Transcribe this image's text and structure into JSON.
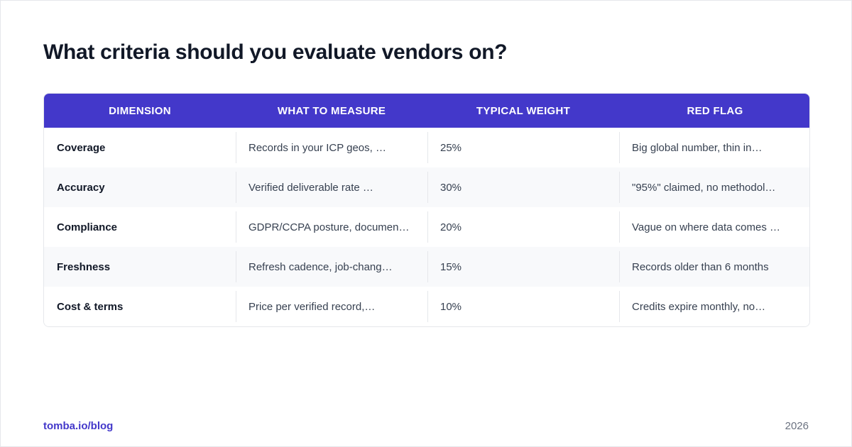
{
  "title": "What criteria should you evaluate vendors on?",
  "table": {
    "headers": [
      "DIMENSION",
      "WHAT TO MEASURE",
      "TYPICAL WEIGHT",
      "RED FLAG"
    ],
    "rows": [
      [
        "Coverage",
        "Records in your ICP geos, …",
        "25%",
        "Big global number, thin in…"
      ],
      [
        "Accuracy",
        "Verified deliverable rate …",
        "30%",
        "\"95%\" claimed, no methodol…"
      ],
      [
        "Compliance",
        "GDPR/CCPA posture, documen…",
        "20%",
        "Vague on where data comes …"
      ],
      [
        "Freshness",
        "Refresh cadence, job-chang…",
        "15%",
        "Records older than 6 months"
      ],
      [
        "Cost & terms",
        "Price per verified record,…",
        "10%",
        "Credits expire monthly, no…"
      ]
    ]
  },
  "footer": {
    "link": "tomba.io/blog",
    "year": "2026"
  },
  "colors": {
    "header_bg": "#4338ca",
    "accent": "#4338ca",
    "title": "#111827"
  }
}
